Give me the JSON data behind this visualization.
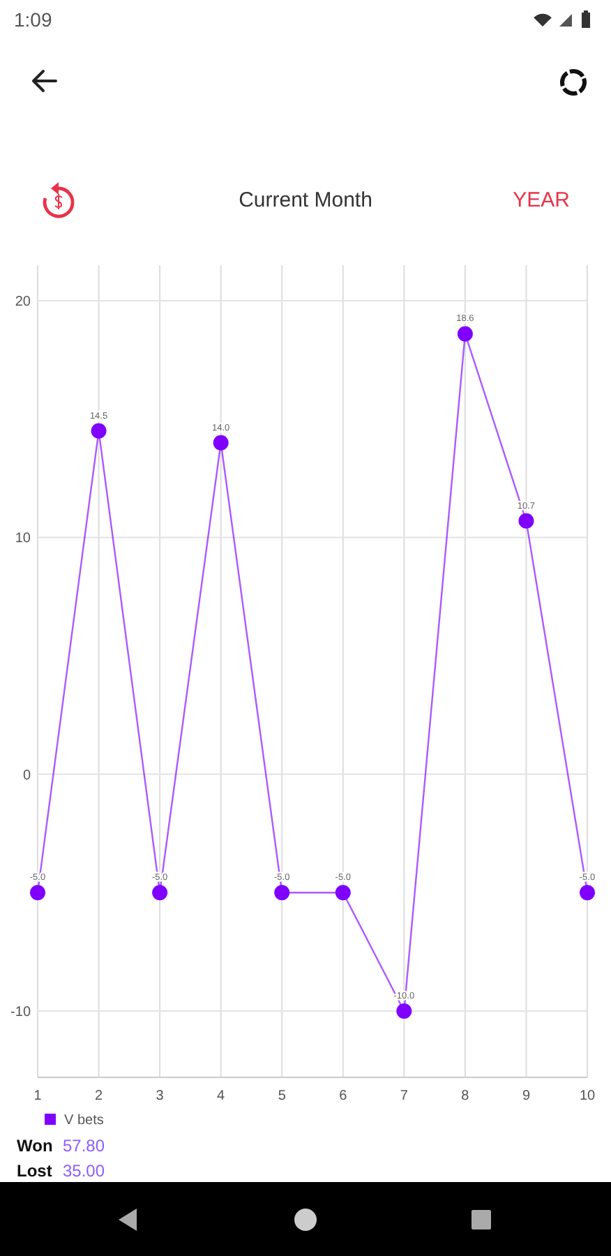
{
  "chart_data": {
    "type": "line",
    "title": "Current Month",
    "x": [
      1,
      2,
      3,
      4,
      5,
      6,
      7,
      8,
      9,
      10
    ],
    "xlim": [
      1,
      10
    ],
    "xticks": [
      1,
      2,
      3,
      4,
      5,
      6,
      7,
      8,
      9,
      10
    ],
    "ylim": [
      -12.8,
      21.5
    ],
    "yticks": [
      -10,
      0,
      10,
      20
    ],
    "series": [
      {
        "name": "V bets",
        "color": "#7f00ff",
        "values": [
          -5,
          14.5,
          -5,
          14,
          -5,
          -5,
          -10,
          18.6,
          10.7,
          -5
        ],
        "value_labels": [
          "-5.0",
          "14.5",
          "-5.0",
          "14.0",
          "-5.0",
          "-5.0",
          "-10.0",
          "18.6",
          "10.7",
          "-5.0"
        ]
      }
    ],
    "grid": true,
    "legend": "bottom left",
    "marker": "circle",
    "line_style": "solid",
    "annotations": [
      "1:09",
      "YEAR",
      "Won 57.80",
      "Lost 35.00"
    ]
  }
}
